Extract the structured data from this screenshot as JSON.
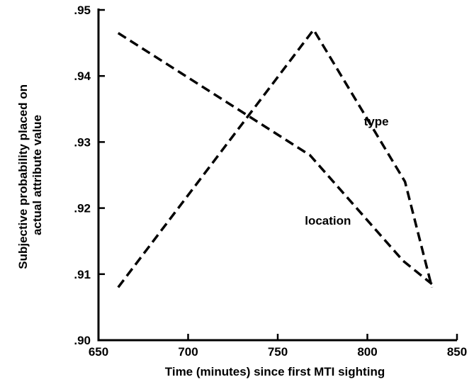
{
  "chart_data": {
    "type": "line",
    "title": "",
    "xlabel": "Time (minutes) since first MTI sighting",
    "ylabel": "Subjective probability placed on\nactual attribute value",
    "ylabel_lines": [
      "Subjective probability placed on",
      "actual attribute value"
    ],
    "xlim": [
      650,
      850
    ],
    "ylim": [
      0.9,
      0.95
    ],
    "x_ticks": [
      650,
      700,
      750,
      800,
      850
    ],
    "x_tick_labels": [
      "650",
      "700",
      "750",
      "800",
      "850"
    ],
    "y_ticks": [
      0.9,
      0.91,
      0.92,
      0.93,
      0.94,
      0.95
    ],
    "y_tick_labels": [
      ".90",
      ".91",
      ".92",
      ".93",
      ".94",
      ".95"
    ],
    "grid": false,
    "line_style": "dashed",
    "series": [
      {
        "name": "type",
        "x": [
          661,
          770,
          821,
          836
        ],
        "y": [
          0.908,
          0.947,
          0.924,
          0.908
        ]
      },
      {
        "name": "location",
        "x": [
          661,
          768,
          820,
          836
        ],
        "y": [
          0.9465,
          0.928,
          0.912,
          0.9085
        ]
      }
    ],
    "annotations": [
      {
        "text": "type",
        "x": 805,
        "y": 0.9325,
        "series": "type"
      },
      {
        "text": "location",
        "x": 778,
        "y": 0.9175,
        "series": "location"
      }
    ]
  }
}
